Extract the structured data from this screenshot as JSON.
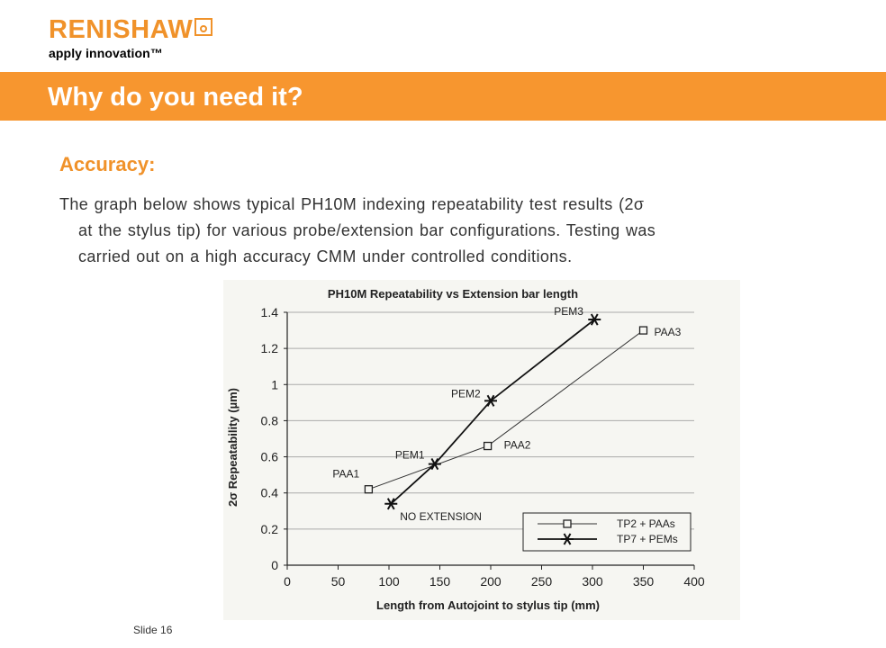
{
  "logo": {
    "brand": "RENISHAW",
    "tagline": "apply innovation™"
  },
  "banner": {
    "title": "Why do you need it?"
  },
  "section": {
    "heading": "Accuracy:",
    "lines": [
      "The graph below shows typical PH10M indexing repeatability test results (2σ",
      "at the stylus tip) for various probe/extension bar configurations.  Testing was",
      "carried out on a high accuracy CMM under controlled conditions."
    ]
  },
  "footer": {
    "slide": "Slide 16"
  },
  "chart_data": {
    "type": "line",
    "title": "PH10M Repeatability vs Extension bar length",
    "xlabel": "Length from Autojoint to stylus tip (mm)",
    "ylabel": "2σ Repeatability (µm)",
    "xlim": [
      0,
      400
    ],
    "ylim": [
      0,
      1.4
    ],
    "xticks": [
      0,
      50,
      100,
      150,
      200,
      250,
      300,
      350,
      400
    ],
    "yticks": [
      0,
      0.2,
      0.4,
      0.6,
      0.8,
      1,
      1.2,
      1.4
    ],
    "xtick_labels": [
      "0",
      "50",
      "100",
      "150",
      "200",
      "250",
      "300",
      "350",
      "400"
    ],
    "ytick_labels": [
      "0",
      "0.2",
      "0.4",
      "0.6",
      "0.8",
      "1",
      "1.2",
      "1.4"
    ],
    "grid": "horizontal",
    "legend_position": "bottom-right",
    "series": [
      {
        "name": "TP2 + PAAs",
        "marker": "square",
        "color": "#333333",
        "x": [
          80,
          197,
          350
        ],
        "y": [
          0.42,
          0.66,
          1.3
        ],
        "point_labels": [
          "PAA1",
          "PAA2",
          "PAA3"
        ]
      },
      {
        "name": "TP7 + PEMs",
        "marker": "star",
        "color": "#111111",
        "x": [
          102,
          145,
          200,
          302
        ],
        "y": [
          0.34,
          0.56,
          0.91,
          1.36
        ],
        "point_labels": [
          "NO EXTENSION",
          "PEM1",
          "PEM2",
          "PEM3"
        ]
      }
    ]
  }
}
